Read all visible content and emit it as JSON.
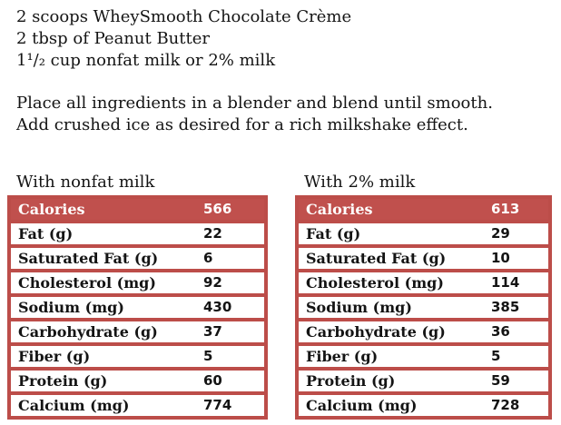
{
  "recipe": {
    "ingredients": [
      "2 scoops WheySmooth Chocolate Crème",
      "2 tbsp of Peanut Butter",
      "1¹/₂ cup nonfat milk or 2% milk"
    ],
    "directions": [
      "Place all ingredients in a blender and blend until smooth.",
      "Add crushed ice as desired for a rich milkshake effect."
    ]
  },
  "colors": {
    "accent_red": "#c0504d",
    "border_red": "#bc4d49",
    "header_text": "#ffffff"
  },
  "tables": [
    {
      "title": "With nonfat milk",
      "rows": [
        {
          "label": "Calories",
          "value": "566",
          "header": true
        },
        {
          "label": "Fat (g)",
          "value": "22"
        },
        {
          "label": "Saturated Fat (g)",
          "value": "6"
        },
        {
          "label": "Cholesterol (mg)",
          "value": "92"
        },
        {
          "label": "Sodium (mg)",
          "value": "430"
        },
        {
          "label": "Carbohydrate (g)",
          "value": "37"
        },
        {
          "label": "Fiber (g)",
          "value": "5"
        },
        {
          "label": "Protein (g)",
          "value": "60"
        },
        {
          "label": "Calcium (mg)",
          "value": "774"
        }
      ]
    },
    {
      "title": "With 2% milk",
      "rows": [
        {
          "label": "Calories",
          "value": "613",
          "header": true
        },
        {
          "label": "Fat (g)",
          "value": "29"
        },
        {
          "label": "Saturated Fat (g)",
          "value": "10"
        },
        {
          "label": "Cholesterol (mg)",
          "value": "114"
        },
        {
          "label": "Sodium (mg)",
          "value": "385"
        },
        {
          "label": "Carbohydrate (g)",
          "value": "36"
        },
        {
          "label": "Fiber (g)",
          "value": "5"
        },
        {
          "label": "Protein (g)",
          "value": "59"
        },
        {
          "label": "Calcium (mg)",
          "value": "728"
        }
      ]
    }
  ]
}
